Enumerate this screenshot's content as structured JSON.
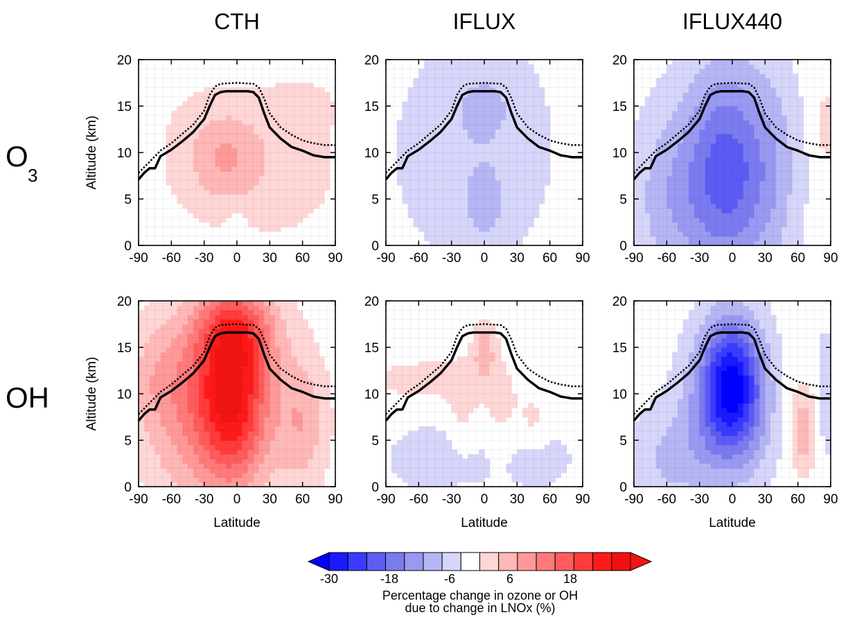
{
  "columns": [
    {
      "title": "CTH"
    },
    {
      "title": "IFLUX"
    },
    {
      "title": "IFLUX440"
    }
  ],
  "rows": [
    {
      "label_main": "O",
      "label_sub": "3"
    },
    {
      "label_main": "OH",
      "label_sub": ""
    }
  ],
  "colorbar": {
    "levels": [
      -30,
      -26,
      -22,
      -18,
      -14,
      -10,
      -6,
      -2,
      2,
      6,
      10,
      14,
      18,
      22,
      26,
      30
    ],
    "tick_values": [
      -30,
      -18,
      -6,
      6,
      18
    ],
    "tick_labels": [
      "-30",
      "-18",
      "-6",
      "6",
      "18"
    ],
    "colors": [
      "#1a1aff",
      "#3b3bff",
      "#5c5cf5",
      "#7b7bf0",
      "#9999f2",
      "#b6b6f5",
      "#d6d6fa",
      "#ffffff",
      "#ffd6d6",
      "#ffb8b8",
      "#ff9999",
      "#ff7a7a",
      "#ff5c5c",
      "#ff3b3b",
      "#ff1a1a",
      "#f20f0f"
    ],
    "under_color": "#0000ff",
    "over_color": "#f21414",
    "label_line1": "Percentage change in ozone or OH",
    "label_line2": "due to change in LNOx (%)"
  },
  "chart_data": [
    {
      "type": "heatmap",
      "id": "o3-cth",
      "column": "CTH",
      "row": "O3",
      "xlabel": "",
      "ylabel": "Altitude (km)",
      "xlim": [
        -90,
        90
      ],
      "ylim": [
        0,
        20
      ],
      "xticks": [
        -90,
        -60,
        -30,
        0,
        30,
        60,
        90
      ],
      "yticks": [
        0,
        5,
        10,
        15,
        20
      ],
      "z_blobs": [
        {
          "lat": -8,
          "alt": 9.5,
          "amp": 7.5,
          "wlat": 22,
          "walt": 3.5
        },
        {
          "lat": 40,
          "alt": 9,
          "amp": 4,
          "wlat": 40,
          "walt": 6
        },
        {
          "lat": -40,
          "alt": 10,
          "amp": 3,
          "wlat": 25,
          "walt": 5
        },
        {
          "lat": 60,
          "alt": 15,
          "amp": 3,
          "wlat": 18,
          "walt": 1.5
        },
        {
          "lat": 0,
          "alt": 1.5,
          "amp": -3,
          "wlat": 6,
          "walt": 1.5
        }
      ]
    },
    {
      "type": "heatmap",
      "id": "o3-iflux",
      "column": "IFLUX",
      "row": "O3",
      "xlabel": "",
      "ylabel": "",
      "xlim": [
        -90,
        90
      ],
      "ylim": [
        0,
        20
      ],
      "xticks": [
        -90,
        -60,
        -30,
        0,
        30,
        60,
        90
      ],
      "yticks": [
        0,
        5,
        10,
        15,
        20
      ],
      "z_blobs": [
        {
          "lat": -10,
          "alt": 10,
          "amp": -4,
          "wlat": 60,
          "walt": 10
        },
        {
          "lat": 0,
          "alt": 15,
          "amp": -4,
          "wlat": 22,
          "walt": 3
        },
        {
          "lat": 0,
          "alt": 4.5,
          "amp": -5,
          "wlat": 14,
          "walt": 3
        },
        {
          "lat": 85,
          "alt": 12,
          "amp": 3,
          "wlat": 8,
          "walt": 4
        }
      ]
    },
    {
      "type": "heatmap",
      "id": "o3-iflux440",
      "column": "IFLUX440",
      "row": "O3",
      "xlabel": "",
      "ylabel": "",
      "xlim": [
        -90,
        90
      ],
      "ylim": [
        0,
        20
      ],
      "xticks": [
        -90,
        -60,
        -30,
        0,
        30,
        60,
        90
      ],
      "yticks": [
        0,
        5,
        10,
        15,
        20
      ],
      "z_blobs": [
        {
          "lat": -5,
          "alt": 8,
          "amp": -20,
          "wlat": 28,
          "walt": 8
        },
        {
          "lat": -60,
          "alt": 5,
          "amp": -7,
          "wlat": 25,
          "walt": 7
        },
        {
          "lat": 40,
          "alt": 8,
          "amp": -5,
          "wlat": 18,
          "walt": 8
        },
        {
          "lat": 85,
          "alt": 13,
          "amp": 3,
          "wlat": 8,
          "walt": 4
        }
      ]
    },
    {
      "type": "heatmap",
      "id": "oh-cth",
      "column": "CTH",
      "row": "OH",
      "xlabel": "Latitude",
      "ylabel": "Altitude (km)",
      "xlim": [
        -90,
        90
      ],
      "ylim": [
        0,
        20
      ],
      "xticks": [
        -90,
        -60,
        -30,
        0,
        30,
        60,
        90
      ],
      "yticks": [
        0,
        5,
        10,
        15,
        20
      ],
      "z_blobs": [
        {
          "lat": -5,
          "alt": 10,
          "amp": 32,
          "wlat": 25,
          "walt": 7
        },
        {
          "lat": 0,
          "alt": 17,
          "amp": 10,
          "wlat": 28,
          "walt": 3
        },
        {
          "lat": 60,
          "alt": 7,
          "amp": 9,
          "wlat": 16,
          "walt": 5
        },
        {
          "lat": -55,
          "alt": 8,
          "amp": 8,
          "wlat": 25,
          "walt": 7
        },
        {
          "lat": -75,
          "alt": 12,
          "amp": 5,
          "wlat": 20,
          "walt": 4
        }
      ]
    },
    {
      "type": "heatmap",
      "id": "oh-iflux",
      "column": "IFLUX",
      "row": "OH",
      "xlabel": "Latitude",
      "ylabel": "",
      "xlim": [
        -90,
        90
      ],
      "ylim": [
        0,
        20
      ],
      "xticks": [
        -90,
        -60,
        -30,
        0,
        30,
        60,
        90
      ],
      "yticks": [
        0,
        5,
        10,
        15,
        20
      ],
      "z_blobs": [
        {
          "lat": 0,
          "alt": 14.5,
          "amp": 9,
          "wlat": 7,
          "walt": 2
        },
        {
          "lat": -55,
          "alt": 11.5,
          "amp": 4,
          "wlat": 35,
          "walt": 1.5
        },
        {
          "lat": -40,
          "alt": 3,
          "amp": -4,
          "wlat": 40,
          "walt": 3
        },
        {
          "lat": 50,
          "alt": 3,
          "amp": -3,
          "wlat": 30,
          "walt": 3
        },
        {
          "lat": -20,
          "alt": 8,
          "amp": 3.5,
          "wlat": 10,
          "walt": 4
        },
        {
          "lat": 15,
          "alt": 8,
          "amp": 3.5,
          "wlat": 12,
          "walt": 4
        },
        {
          "lat": 45,
          "alt": 7,
          "amp": 3.5,
          "wlat": 10,
          "walt": 2
        }
      ]
    },
    {
      "type": "heatmap",
      "id": "oh-iflux440",
      "column": "IFLUX440",
      "row": "OH",
      "xlabel": "Latitude",
      "ylabel": "",
      "xlim": [
        -90,
        90
      ],
      "ylim": [
        0,
        20
      ],
      "xticks": [
        -90,
        -60,
        -30,
        0,
        30,
        60,
        90
      ],
      "yticks": [
        0,
        5,
        10,
        15,
        20
      ],
      "z_blobs": [
        {
          "lat": -2,
          "alt": 11,
          "amp": -26,
          "wlat": 18,
          "walt": 5
        },
        {
          "lat": -20,
          "alt": 8,
          "amp": -8,
          "wlat": 22,
          "walt": 6
        },
        {
          "lat": 20,
          "alt": 9,
          "amp": -7,
          "wlat": 16,
          "walt": 6
        },
        {
          "lat": -60,
          "alt": 3,
          "amp": -6,
          "wlat": 25,
          "walt": 4
        },
        {
          "lat": 65,
          "alt": 6,
          "amp": 9,
          "wlat": 8,
          "walt": 3
        },
        {
          "lat": 85,
          "alt": 10,
          "amp": -4,
          "wlat": 6,
          "walt": 6
        }
      ]
    }
  ],
  "tropopause_solid": [
    [
      -90,
      7.1
    ],
    [
      -85,
      7.8
    ],
    [
      -80,
      8.3
    ],
    [
      -75,
      8.3
    ],
    [
      -70,
      9.6
    ],
    [
      -60,
      10.3
    ],
    [
      -50,
      11.2
    ],
    [
      -40,
      12.2
    ],
    [
      -30,
      13.6
    ],
    [
      -25,
      15.0
    ],
    [
      -20,
      16.2
    ],
    [
      -15,
      16.5
    ],
    [
      -10,
      16.6
    ],
    [
      0,
      16.6
    ],
    [
      10,
      16.6
    ],
    [
      15,
      16.5
    ],
    [
      20,
      15.9
    ],
    [
      25,
      14.2
    ],
    [
      30,
      12.7
    ],
    [
      40,
      11.5
    ],
    [
      50,
      10.6
    ],
    [
      60,
      10.2
    ],
    [
      70,
      9.7
    ],
    [
      80,
      9.5
    ],
    [
      90,
      9.5
    ]
  ],
  "tropopause_dotted": [
    [
      -90,
      7.8
    ],
    [
      -80,
      9.0
    ],
    [
      -70,
      10.2
    ],
    [
      -60,
      11.0
    ],
    [
      -50,
      12.0
    ],
    [
      -40,
      13.0
    ],
    [
      -30,
      14.5
    ],
    [
      -25,
      16.2
    ],
    [
      -20,
      17.1
    ],
    [
      -15,
      17.4
    ],
    [
      0,
      17.5
    ],
    [
      15,
      17.4
    ],
    [
      20,
      17.0
    ],
    [
      25,
      15.8
    ],
    [
      30,
      14.2
    ],
    [
      40,
      12.7
    ],
    [
      50,
      11.9
    ],
    [
      60,
      11.3
    ],
    [
      70,
      11.0
    ],
    [
      80,
      10.8
    ],
    [
      90,
      10.8
    ]
  ]
}
